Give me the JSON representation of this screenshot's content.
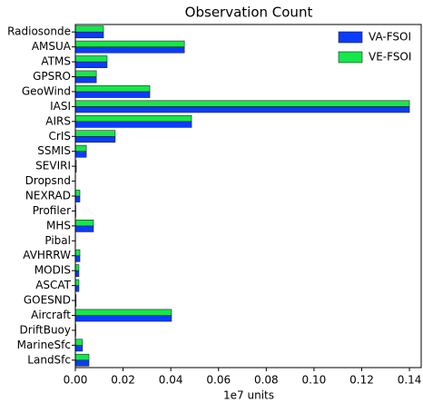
{
  "chart_data": {
    "type": "hbar",
    "title": "Observation Count",
    "x_label": "1e7 units",
    "categories": [
      "Radiosonde",
      "AMSUA",
      "ATMS",
      "GPSRO",
      "GeoWind",
      "IASI",
      "AIRS",
      "CrIS",
      "SSMIS",
      "SEVIRI",
      "Dropsnd",
      "NEXRAD",
      "Profiler",
      "MHS",
      "Pibal",
      "AVHRRW",
      "MODIS",
      "ASCAT",
      "GOESND",
      "Aircraft",
      "DriftBuoy",
      "MarineSfc",
      "LandSfc"
    ],
    "series": [
      {
        "name": "VA-FSOI",
        "color": "#0a3cff",
        "values": [
          0.0118,
          0.0457,
          0.0133,
          0.0088,
          0.0312,
          0.14,
          0.0487,
          0.0167,
          0.0046,
          0.0004,
          0.0001,
          0.0019,
          0.0002,
          0.0076,
          0.0001,
          0.0019,
          0.0015,
          0.0015,
          0.0003,
          0.0403,
          0.0002,
          0.003,
          0.0057
        ]
      },
      {
        "name": "VE-FSOI",
        "color": "#14e84a",
        "values": [
          0.0118,
          0.0457,
          0.0133,
          0.0088,
          0.0312,
          0.14,
          0.0487,
          0.0167,
          0.0046,
          0.0004,
          0.0001,
          0.0019,
          0.0002,
          0.0076,
          0.0001,
          0.0019,
          0.0015,
          0.0015,
          0.0003,
          0.0403,
          0.0002,
          0.003,
          0.0057
        ]
      }
    ],
    "xlim": [
      0,
      0.1453
    ],
    "xticks": [
      {
        "value": 0,
        "label": "0.00"
      },
      {
        "value": 0.02,
        "label": "0.02"
      },
      {
        "value": 0.04,
        "label": "0.04"
      },
      {
        "value": 0.06,
        "label": "0.06"
      },
      {
        "value": 0.08,
        "label": "0.08"
      },
      {
        "value": 0.1,
        "label": "0.10"
      },
      {
        "value": 0.12,
        "label": "0.12"
      },
      {
        "value": 0.14,
        "label": "0.14"
      }
    ],
    "legend": "upper right"
  }
}
